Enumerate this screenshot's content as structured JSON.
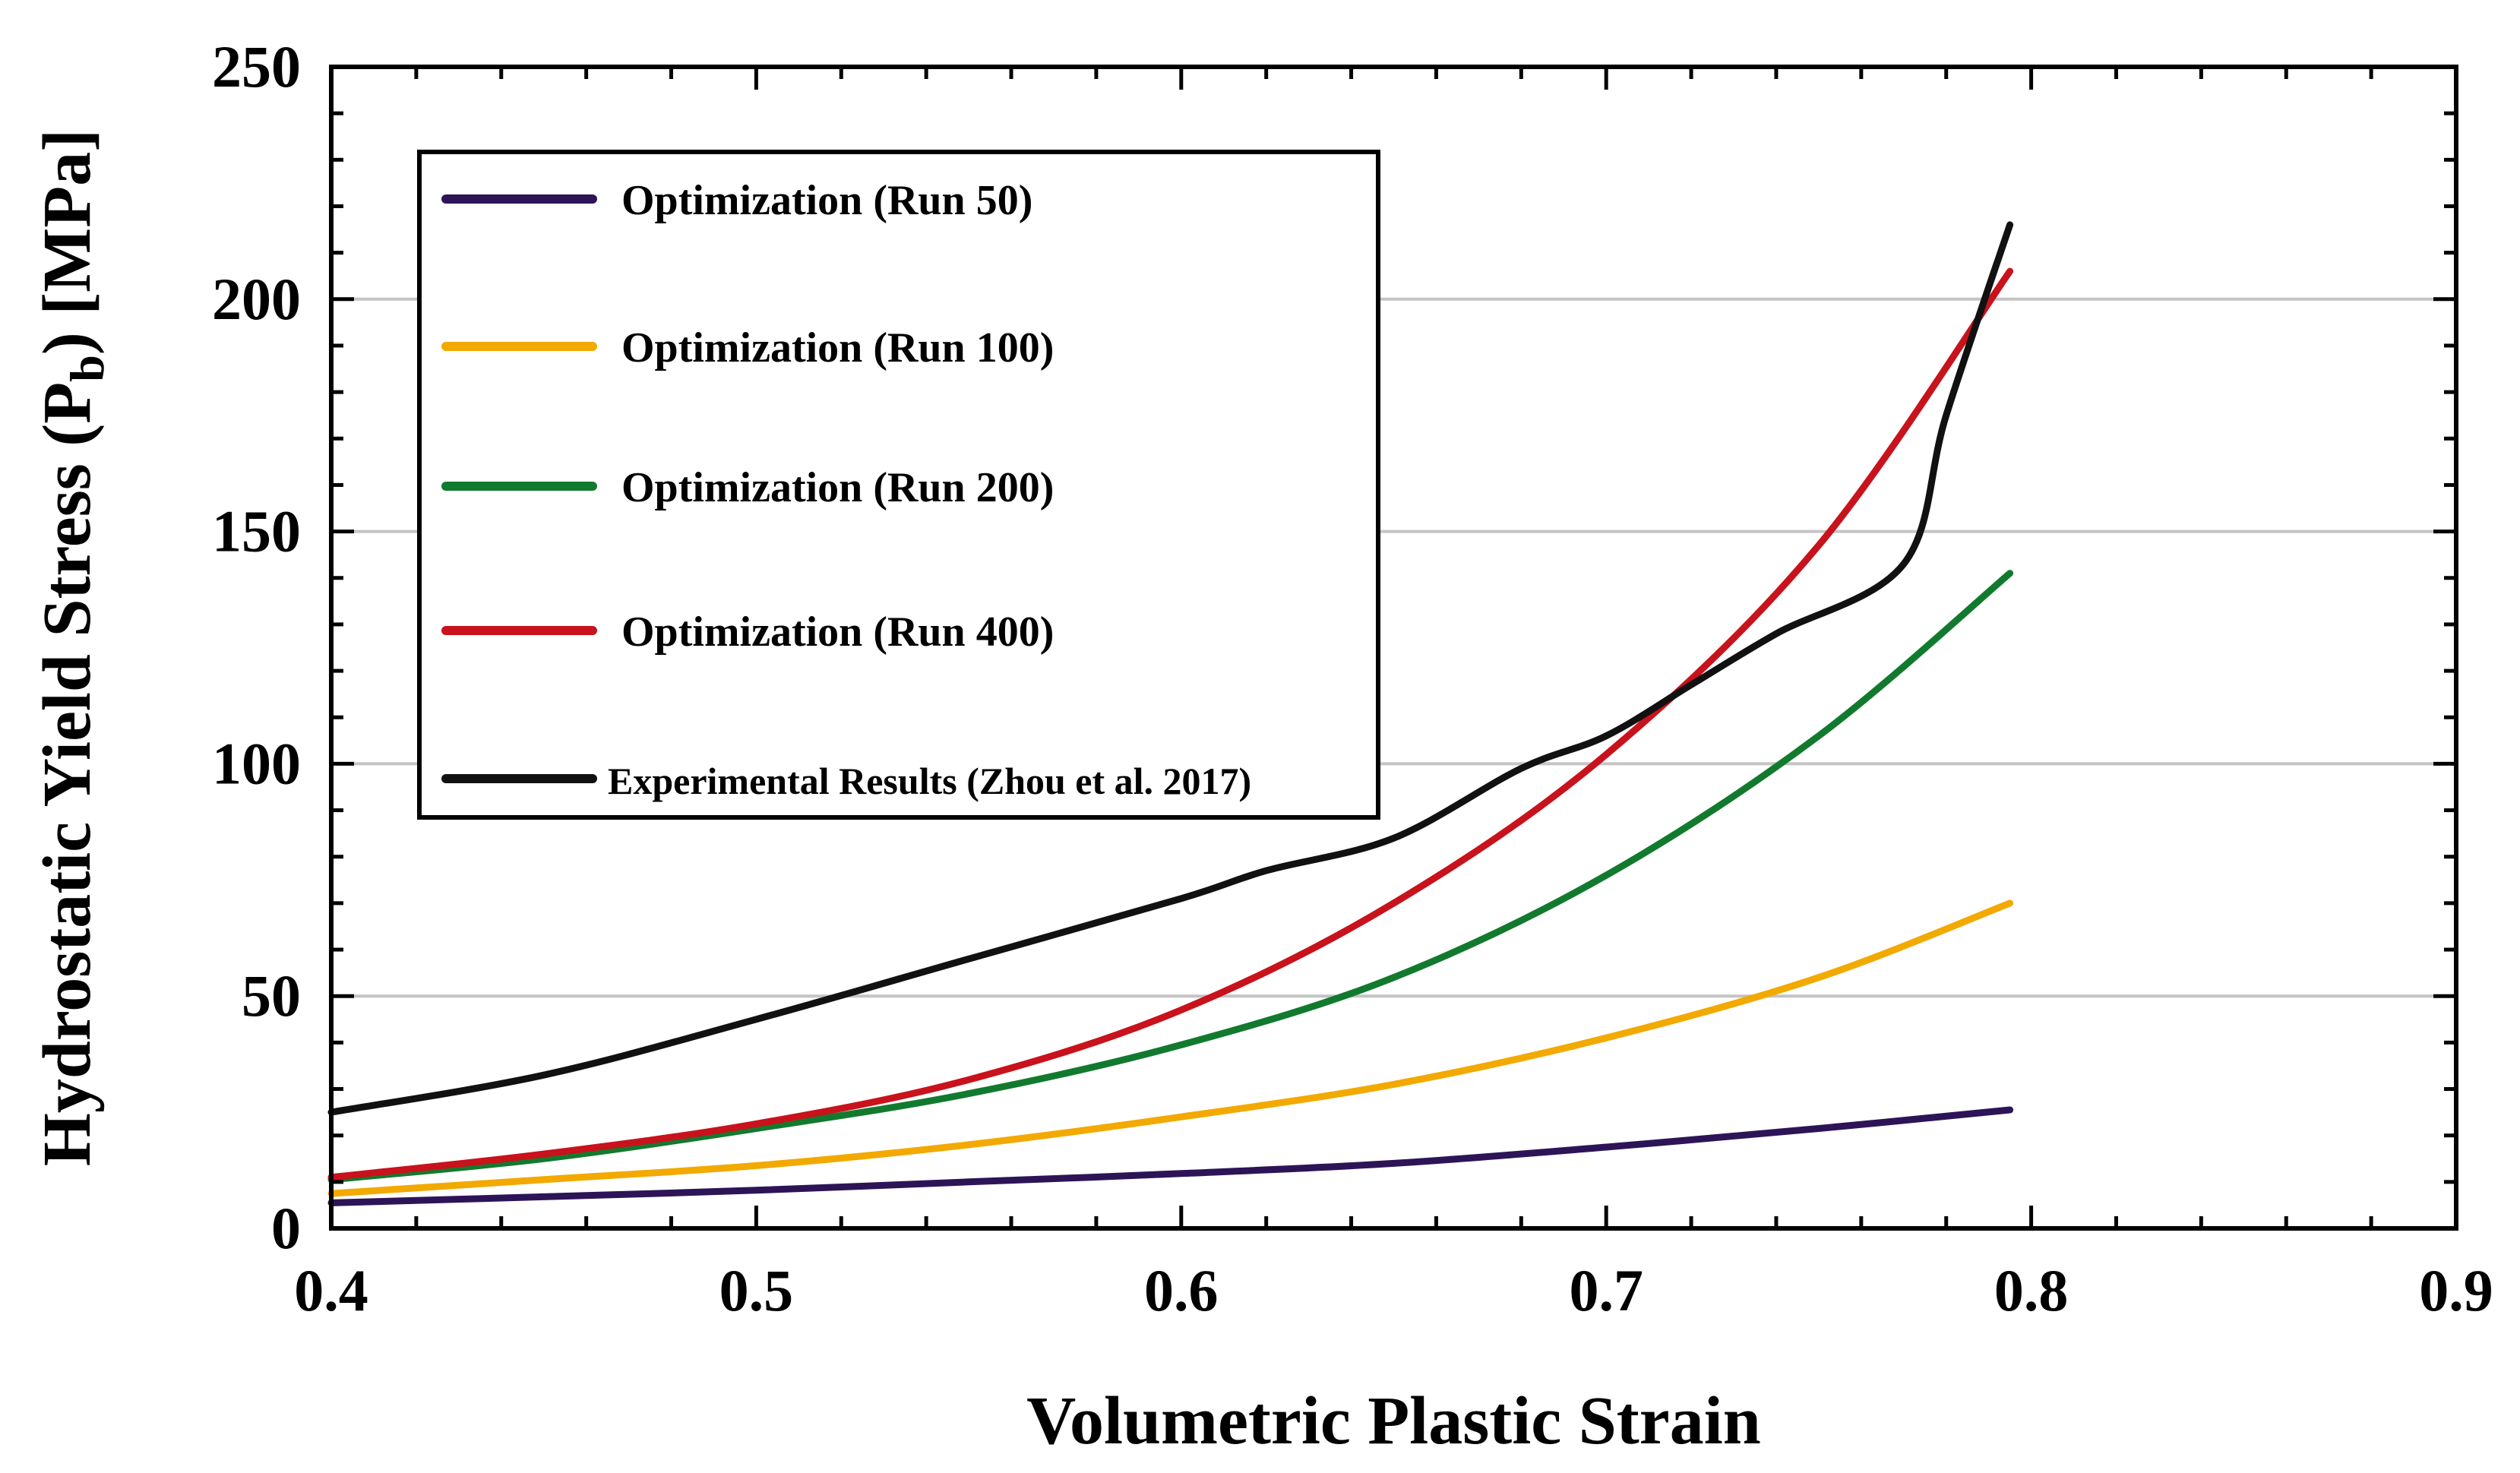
{
  "chart_data": {
    "type": "line",
    "title": "",
    "xlabel": "Volumetric Plastic Strain",
    "ylabel": "Hydrostatic Yield Stress (P",
    "ylabel_subscript": "b",
    "ylabel_suffix": ") [MPa]",
    "xlim": [
      0.4,
      0.9
    ],
    "ylim": [
      0,
      250
    ],
    "xticks": [
      0.4,
      0.5,
      0.6,
      0.7,
      0.8,
      0.9
    ],
    "xtick_labels": [
      "0.4",
      "0.5",
      "0.6",
      "0.7",
      "0.8",
      "0.9"
    ],
    "yticks": [
      0,
      50,
      100,
      150,
      200,
      250
    ],
    "ytick_labels": [
      "0",
      "50",
      "100",
      "150",
      "200",
      "250"
    ],
    "grid": "horizontal",
    "legend_position": "top-left",
    "series": [
      {
        "name": "Optimization (Run 50)",
        "color": "#2d1457",
        "x": [
          0.4,
          0.45,
          0.5,
          0.55,
          0.6,
          0.65,
          0.7,
          0.75,
          0.795
        ],
        "y": [
          5.5,
          6.8,
          8.2,
          10,
          11.8,
          14,
          17.5,
          21.5,
          25.5
        ]
      },
      {
        "name": "Optimization (Run 100)",
        "color": "#f2a900",
        "x": [
          0.4,
          0.45,
          0.5,
          0.55,
          0.6,
          0.65,
          0.7,
          0.75,
          0.795
        ],
        "y": [
          7.5,
          10.5,
          13.5,
          18,
          24,
          31,
          41,
          54,
          70
        ]
      },
      {
        "name": "Optimization (Run 200)",
        "color": "#127a2e",
        "x": [
          0.4,
          0.45,
          0.5,
          0.55,
          0.6,
          0.65,
          0.7,
          0.75,
          0.795
        ],
        "y": [
          10.5,
          15,
          21.5,
          29,
          39.5,
          54,
          76,
          106,
          141
        ]
      },
      {
        "name": "Optimization (Run 400)",
        "color": "#c8121c",
        "x": [
          0.4,
          0.45,
          0.5,
          0.55,
          0.6,
          0.65,
          0.7,
          0.75,
          0.795
        ],
        "y": [
          11,
          16,
          22.5,
          32,
          47,
          70,
          102,
          147,
          206
        ]
      },
      {
        "name": "Experimental Results (Zhou et al. 2017)",
        "color": "#111111",
        "x": [
          0.4,
          0.45,
          0.5,
          0.55,
          0.6,
          0.62,
          0.65,
          0.68,
          0.7,
          0.72,
          0.74,
          0.77,
          0.78,
          0.795
        ],
        "y": [
          25,
          33,
          45,
          58,
          71,
          77,
          84,
          99,
          106,
          117,
          128,
          143,
          175,
          216
        ]
      }
    ]
  }
}
